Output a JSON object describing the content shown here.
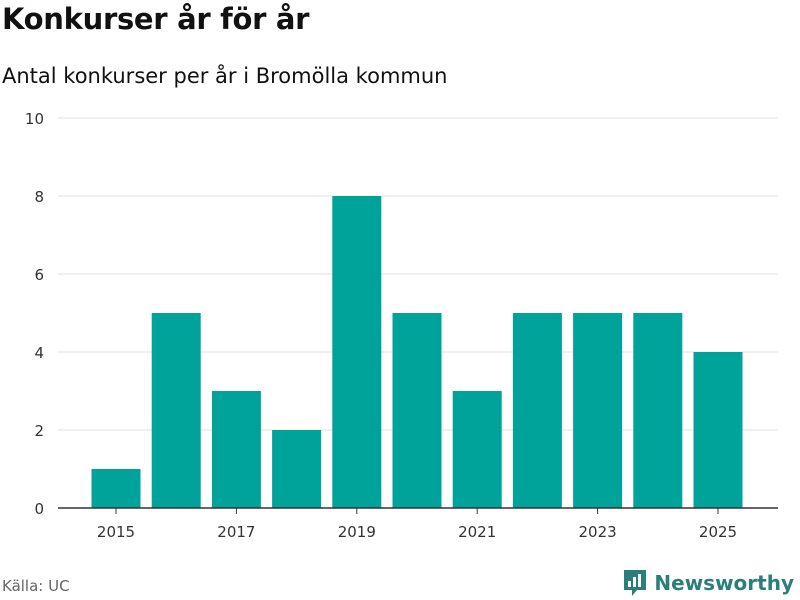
{
  "header": {
    "title": "Konkurser år för år",
    "subtitle": "Antal konkurser per år i Bromölla kommun"
  },
  "footer": {
    "source": "Källa: UC",
    "brand": "Newsworthy"
  },
  "colors": {
    "bar": "#00a399",
    "grid": "#e2e2e2",
    "axis": "#333333",
    "brand": "#2a7f7a"
  },
  "chart_data": {
    "type": "bar",
    "title": "Konkurser år för år",
    "subtitle": "Antal konkurser per år i Bromölla kommun",
    "xlabel": "",
    "ylabel": "",
    "categories": [
      2015,
      2016,
      2017,
      2018,
      2019,
      2020,
      2021,
      2022,
      2023,
      2024,
      2025
    ],
    "values": [
      1,
      5,
      3,
      2,
      8,
      5,
      3,
      5,
      5,
      5,
      4
    ],
    "ylim": [
      0,
      10
    ],
    "yticks": [
      0,
      2,
      4,
      6,
      8,
      10
    ],
    "xticks": [
      2015,
      2017,
      2019,
      2021,
      2023,
      2025
    ],
    "grid": true
  }
}
